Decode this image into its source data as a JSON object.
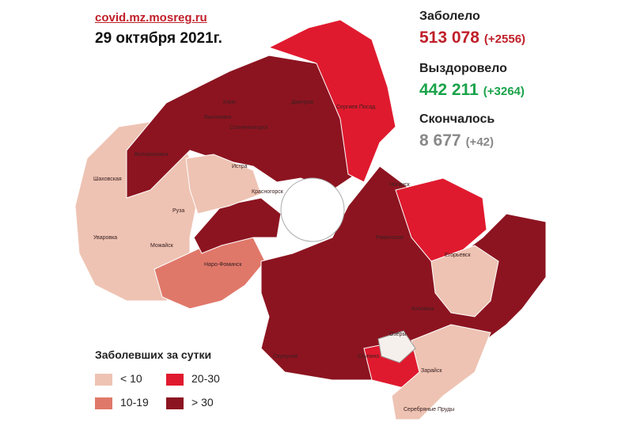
{
  "header": {
    "source": "covid.mz.mosreg.ru",
    "date": "29 октября 2021г."
  },
  "stats": [
    {
      "label": "Заболело",
      "value": "513 078",
      "delta": "(+2556)",
      "color": "#c0202a"
    },
    {
      "label": "Выздоровело",
      "value": "442 211",
      "delta": "(+3264)",
      "color": "#1aa34a"
    },
    {
      "label": "Скончалось",
      "value": "8 677",
      "delta": "(+42)",
      "color": "#888888"
    }
  ],
  "legend": {
    "title": "Заболевших за сутки",
    "items": [
      {
        "label": "< 10",
        "color": "#eec3b3"
      },
      {
        "label": "20-30",
        "color": "#e01a2e"
      },
      {
        "label": "10-19",
        "color": "#e0786a"
      },
      {
        "label": "> 30",
        "color": "#8c1420"
      }
    ]
  },
  "regions": [
    "Шаховская",
    "Волоколамск",
    "Клин",
    "Высоковск",
    "Солнечногорск",
    "Дмитров",
    "Сергиев Посад",
    "Истра",
    "Руза",
    "Можайск",
    "Уваровка",
    "Наро-Фоминск",
    "Красногорск",
    "Ногинск",
    "Раменское",
    "Егорьевск",
    "Коломна",
    "Озёры",
    "Зарайск",
    "Серпухов",
    "Ступино",
    "Серебряные Пруды"
  ]
}
